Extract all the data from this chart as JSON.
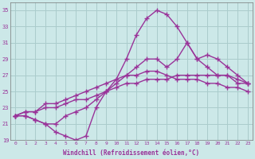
{
  "background_color": "#cce8e8",
  "grid_color": "#aacccc",
  "line_color": "#993399",
  "marker": "+",
  "marker_size": 4,
  "line_width": 1.0,
  "xlabel": "Windchill (Refroidissement éolien,°C)",
  "xlim": [
    -0.5,
    23.5
  ],
  "ylim": [
    19,
    36
  ],
  "yticks": [
    19,
    21,
    23,
    25,
    27,
    29,
    31,
    33,
    35
  ],
  "xticks": [
    0,
    1,
    2,
    3,
    4,
    5,
    6,
    7,
    8,
    9,
    10,
    11,
    12,
    13,
    14,
    15,
    16,
    17,
    18,
    19,
    20,
    21,
    22,
    23
  ],
  "series": [
    {
      "x": [
        0,
        1,
        2,
        3,
        4,
        5,
        6,
        7,
        8,
        9,
        10,
        11,
        12,
        13,
        14,
        15,
        16,
        17,
        18,
        19,
        20,
        21,
        22,
        23
      ],
      "y": [
        22,
        22,
        21.5,
        21,
        20,
        19.5,
        19,
        19.5,
        23,
        25,
        26.5,
        29,
        32,
        34,
        35,
        34.5,
        33,
        31,
        29,
        28,
        27,
        27,
        26,
        26
      ]
    },
    {
      "x": [
        0,
        1,
        2,
        3,
        4,
        5,
        6,
        7,
        8,
        9,
        10,
        11,
        12,
        13,
        14,
        15,
        16,
        17,
        18,
        19,
        20,
        21,
        22,
        23
      ],
      "y": [
        22,
        22,
        21.5,
        21,
        21,
        22,
        22.5,
        23,
        24,
        25,
        26,
        27,
        28,
        29,
        29,
        28,
        29,
        31,
        29,
        29.5,
        29,
        28,
        27,
        26
      ]
    },
    {
      "x": [
        0,
        1,
        2,
        3,
        4,
        5,
        6,
        7,
        8,
        9,
        10,
        11,
        12,
        13,
        14,
        15,
        16,
        17,
        18,
        19,
        20,
        21,
        22,
        23
      ],
      "y": [
        22,
        22.5,
        22.5,
        23,
        23,
        23.5,
        24,
        24,
        24.5,
        25,
        25.5,
        26,
        26,
        26.5,
        26.5,
        26.5,
        27,
        27,
        27,
        27,
        27,
        27,
        26.5,
        26
      ]
    },
    {
      "x": [
        0,
        1,
        2,
        3,
        4,
        5,
        6,
        7,
        8,
        9,
        10,
        11,
        12,
        13,
        14,
        15,
        16,
        17,
        18,
        19,
        20,
        21,
        22,
        23
      ],
      "y": [
        22,
        22.5,
        22.5,
        23.5,
        23.5,
        24,
        24.5,
        25,
        25.5,
        26,
        26.5,
        27,
        27,
        27.5,
        27.5,
        27,
        26.5,
        26.5,
        26.5,
        26,
        26,
        25.5,
        25.5,
        25
      ]
    }
  ]
}
